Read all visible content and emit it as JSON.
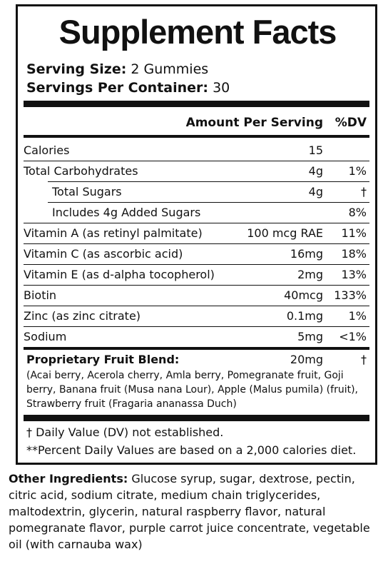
{
  "title": "Supplement Facts",
  "serving_size_label": "Serving Size:",
  "serving_size_value": "2 Gummies",
  "servings_per_container_label": "Servings Per Container:",
  "servings_per_container_value": "30",
  "header": {
    "amount": "Amount Per Serving",
    "dv": "%DV"
  },
  "rows": [
    {
      "name": "Calories",
      "amount": "15",
      "dv": ""
    },
    {
      "name": "Total Carbohydrates",
      "amount": "4g",
      "dv": "1%"
    },
    {
      "name": "Total Sugars",
      "amount": "4g",
      "dv": "†"
    },
    {
      "name": "Includes 4g Added Sugars",
      "amount": "",
      "dv": "8%"
    },
    {
      "name": "Vitamin A (as retinyl palmitate)",
      "amount": "100 mcg RAE",
      "dv": "11%"
    },
    {
      "name": "Vitamin C (as ascorbic acid)",
      "amount": "16mg",
      "dv": "18%"
    },
    {
      "name": "Vitamin E (as d-alpha tocopherol)",
      "amount": "2mg",
      "dv": "13%"
    },
    {
      "name": "Biotin",
      "amount": "40mcg",
      "dv": "133%"
    },
    {
      "name": "Zinc (as zinc citrate)",
      "amount": "0.1mg",
      "dv": "1%"
    },
    {
      "name": "Sodium",
      "amount": "5mg",
      "dv": "<1%"
    }
  ],
  "blend": {
    "name": "Proprietary Fruit Blend:",
    "amount": "20mg",
    "dv": "†",
    "ingredients": "(Acai berry, Acerola cherry, Amla berry, Pomegranate fruit, Goji berry, Banana fruit (Musa nana Lour), Apple (Malus pumila) (fruit), Strawberry fruit (Fragaria ananassa Duch)"
  },
  "footnotes": [
    "† Daily Value (DV) not established.",
    "**Percent Daily Values are based on a 2,000 calories diet."
  ],
  "other_ingredients_label": "Other Ingredients:",
  "other_ingredients": "Glucose syrup, sugar, dextrose, pectin, citric acid, sodium citrate, medium chain triglycerides, maltodextrin, glycerin, natural raspberry flavor, natural pomegranate flavor, purple carrot juice concentrate, vegetable oil (with carnauba wax)"
}
